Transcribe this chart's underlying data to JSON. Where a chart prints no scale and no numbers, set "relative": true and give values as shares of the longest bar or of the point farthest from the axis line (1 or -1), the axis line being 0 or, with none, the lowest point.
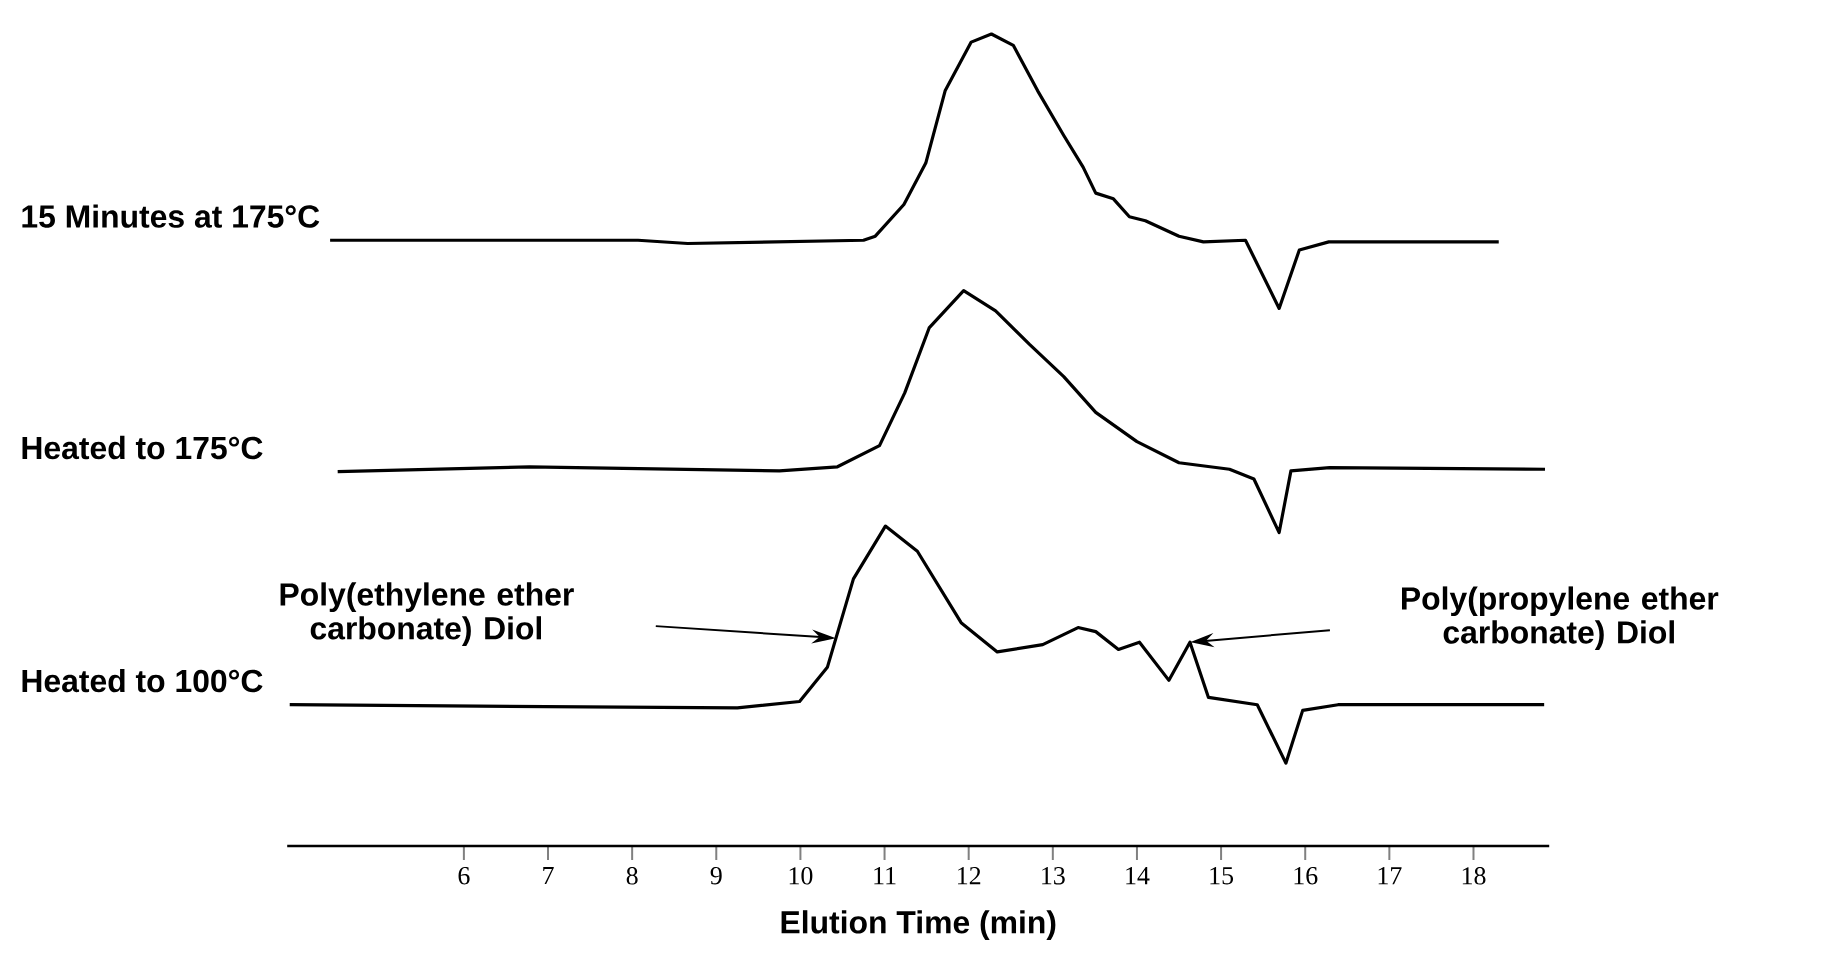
{
  "chart_data": {
    "type": "line",
    "relative": true,
    "xlim": [
      3.9,
      18.9
    ],
    "xticks": [
      6,
      7,
      8,
      9,
      10,
      11,
      12,
      13,
      14,
      15,
      16,
      17,
      18
    ],
    "xlabel": "Elution Time (min)",
    "series": [
      {
        "name": "15 Minutes at 175°C",
        "color": "#000000",
        "x": [
          4.41,
          8.07,
          8.66,
          10.75,
          10.89,
          11.23,
          11.49,
          11.72,
          12.03,
          12.27,
          12.53,
          12.82,
          13.13,
          13.36,
          13.51,
          13.72,
          13.91,
          14.1,
          14.5,
          14.79,
          15.29,
          15.69,
          15.93,
          16.28,
          18.3
        ],
        "values": [
          0.746,
          0.746,
          0.742,
          0.746,
          0.751,
          0.79,
          0.841,
          0.93,
          0.99,
          1.0,
          0.986,
          0.93,
          0.875,
          0.836,
          0.804,
          0.797,
          0.775,
          0.77,
          0.751,
          0.744,
          0.746,
          0.662,
          0.734,
          0.744,
          0.744
        ]
      },
      {
        "name": "Heated to 175°C",
        "color": "#000000",
        "x": [
          4.5,
          6.78,
          9.75,
          10.44,
          10.94,
          11.24,
          11.53,
          11.94,
          12.32,
          12.72,
          13.13,
          13.51,
          14.0,
          14.5,
          15.1,
          15.39,
          15.69,
          15.83,
          16.29,
          18.85
        ],
        "values": [
          0.461,
          0.467,
          0.462,
          0.467,
          0.493,
          0.558,
          0.638,
          0.684,
          0.659,
          0.618,
          0.578,
          0.534,
          0.498,
          0.472,
          0.464,
          0.452,
          0.386,
          0.462,
          0.466,
          0.464
        ]
      },
      {
        "name": "Heated to 100°C",
        "color": "#000000",
        "x": [
          3.93,
          9.25,
          9.99,
          10.32,
          10.63,
          11.01,
          11.39,
          11.91,
          12.34,
          12.88,
          13.3,
          13.51,
          13.78,
          14.03,
          14.38,
          14.63,
          14.85,
          15.43,
          15.77,
          15.97,
          16.39,
          18.84
        ],
        "values": [
          0.174,
          0.17,
          0.178,
          0.22,
          0.329,
          0.394,
          0.363,
          0.275,
          0.239,
          0.248,
          0.269,
          0.264,
          0.242,
          0.251,
          0.204,
          0.251,
          0.183,
          0.174,
          0.102,
          0.167,
          0.174,
          0.174
        ]
      }
    ],
    "annotations": [
      "Poly(ethylene ether carbonate) Diol",
      "Poly(propylene ether carbonate) Diol"
    ]
  }
}
